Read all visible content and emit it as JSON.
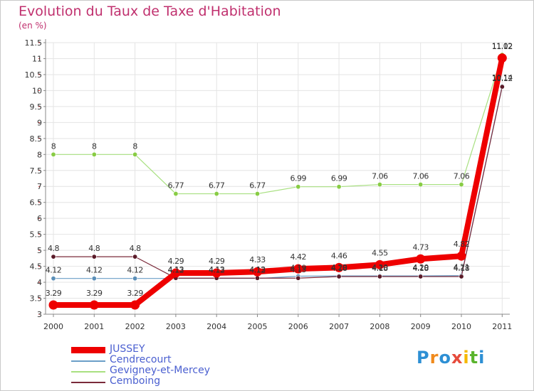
{
  "title": "Evolution du Taux de Taxe d'Habitation",
  "subtitle": "(en %)",
  "logo": {
    "text": "Proxiti",
    "letter_colors": [
      "#2d8fd4",
      "#f08a1c",
      "#2d8fd4",
      "#e64b3c",
      "#f5b800",
      "#5ab42d",
      "#2d8fd4"
    ]
  },
  "chart_data": {
    "type": "line",
    "x": [
      "2000",
      "2001",
      "2002",
      "2003",
      "2004",
      "2005",
      "2006",
      "2007",
      "2008",
      "2009",
      "2010",
      "2011"
    ],
    "ylim": [
      3,
      11.5
    ],
    "yticks": [
      "3",
      "3.5",
      "4",
      "4.5",
      "5",
      "5.5",
      "6",
      "6.5",
      "7",
      "7.5",
      "8",
      "8.5",
      "9",
      "9.5",
      "10",
      "10.5",
      "11",
      "11.5"
    ],
    "grid": true,
    "legend_position": "bottom-left",
    "series": [
      {
        "name": "Cendrecourt",
        "color": "#6b9fc8",
        "width": 1.2,
        "marker_color": "#5b8fb8",
        "values": [
          4.12,
          4.12,
          4.12,
          4.12,
          4.12,
          4.12,
          4.19,
          4.2,
          4.2,
          4.2,
          4.21,
          10.14
        ],
        "labels": [
          "4.12",
          "4.12",
          "4.12",
          "4.12",
          "4.12",
          "4.12",
          "4.19",
          "4.20",
          "4.20",
          "4.20",
          "4.21",
          "10.14"
        ]
      },
      {
        "name": "Gevigney-et-Mercey",
        "color": "#a8e080",
        "width": 1.2,
        "marker_color": "#88cc44",
        "values": [
          8,
          8,
          8,
          6.77,
          6.77,
          6.77,
          6.99,
          6.99,
          7.06,
          7.06,
          7.06,
          11.12
        ],
        "labels": [
          "8",
          "8",
          "8",
          "6.77",
          "6.77",
          "6.77",
          "6.99",
          "6.99",
          "7.06",
          "7.06",
          "7.06",
          "11.12"
        ]
      },
      {
        "name": "Cemboing",
        "color": "#7a2a3a",
        "width": 1.2,
        "marker_color": "#5a1a28",
        "values": [
          4.8,
          4.8,
          4.8,
          4.13,
          4.13,
          4.13,
          4.13,
          4.18,
          4.18,
          4.18,
          4.18,
          10.12
        ],
        "labels": [
          "4.8",
          "4.8",
          "4.8",
          "4.13",
          "4.13",
          "4.13",
          "4.13",
          "4.18",
          "4.18",
          "4.18",
          "4.18",
          "10.12"
        ]
      },
      {
        "name": "JUSSEY",
        "color": "#ee0000",
        "width": 8,
        "marker_color": "#ee0000",
        "values": [
          3.29,
          3.29,
          3.29,
          4.29,
          4.29,
          4.33,
          4.42,
          4.46,
          4.55,
          4.73,
          4.82,
          11.02
        ],
        "labels": [
          "3.29",
          "3.29",
          "3.29",
          "4.29",
          "4.29",
          "4.33",
          "4.42",
          "4.46",
          "4.55",
          "4.73",
          "4.82",
          "11.02"
        ]
      }
    ],
    "legend": [
      {
        "name": "JUSSEY",
        "color": "#ee0000",
        "thick": true
      },
      {
        "name": "Cendrecourt",
        "color": "#6b9fc8",
        "thick": false
      },
      {
        "name": "Gevigney-et-Mercey",
        "color": "#a8e080",
        "thick": false
      },
      {
        "name": "Cemboing",
        "color": "#7a2a3a",
        "thick": false
      }
    ]
  }
}
